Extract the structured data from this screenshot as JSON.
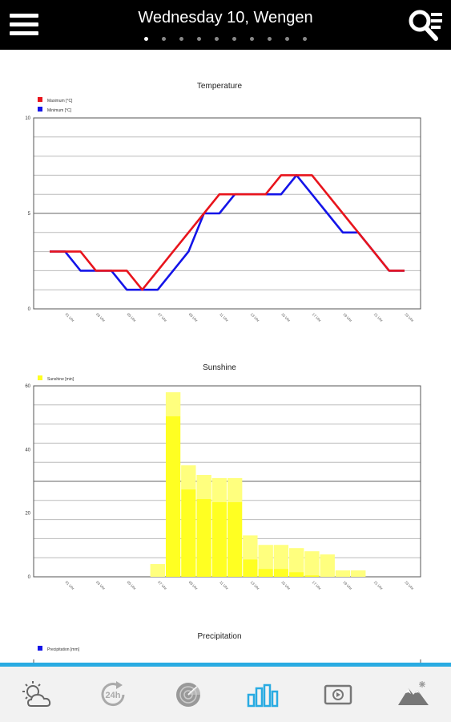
{
  "header": {
    "title": "Wednesday 10, Wengen",
    "page_count": 10,
    "active_page": 0
  },
  "charts": {
    "temperature": {
      "title": "Temperature",
      "legend": [
        {
          "label": "Maximum [°C]",
          "color": "#e8141c"
        },
        {
          "label": "Minimum [°C]",
          "color": "#1414e8"
        }
      ]
    },
    "sunshine": {
      "title": "Sunshine",
      "legend": [
        {
          "label": "Sunshine [min]",
          "color": "#ffff22"
        }
      ]
    },
    "precipitation": {
      "title": "Precipitation",
      "legend": [
        {
          "label": "Precipitation [mm]",
          "color": "#1414e8"
        }
      ]
    }
  },
  "chart_data": [
    {
      "type": "line",
      "title": "Temperature",
      "x": [
        "00:00",
        "01:00",
        "02:00",
        "03:00",
        "04:00",
        "05:00",
        "06:00",
        "07:00",
        "08:00",
        "09:00",
        "10:00",
        "11:00",
        "12:00",
        "13:00",
        "14:00",
        "15:00",
        "16:00",
        "17:00",
        "18:00",
        "19:00",
        "20:00",
        "21:00",
        "22:00",
        "23:00"
      ],
      "x_tick_labels": [
        "01 Uhr",
        "03 Uhr",
        "05 Uhr",
        "07 Uhr",
        "09 Uhr",
        "11 Uhr",
        "13 Uhr",
        "15 Uhr",
        "17 Uhr",
        "19 Uhr",
        "21 Uhr",
        "23 Uhr"
      ],
      "series": [
        {
          "name": "Maximum [°C]",
          "color": "#e8141c",
          "values": [
            3,
            3,
            3,
            2,
            2,
            2,
            1,
            2,
            3,
            4,
            5,
            6,
            6,
            6,
            6,
            7,
            7,
            7,
            6,
            5,
            4,
            3,
            2,
            2
          ]
        },
        {
          "name": "Minimum [°C]",
          "color": "#1414e8",
          "values": [
            3,
            3,
            2,
            2,
            2,
            1,
            1,
            1,
            2,
            3,
            5,
            5,
            6,
            6,
            6,
            6,
            7,
            6,
            5,
            4,
            4,
            3,
            2,
            2
          ]
        }
      ],
      "ylim": [
        0,
        10
      ],
      "y_ticks": [
        0,
        5,
        10
      ],
      "grid": true,
      "legend_position": "top-left"
    },
    {
      "type": "bar",
      "title": "Sunshine",
      "x": [
        "00:00",
        "01:00",
        "02:00",
        "03:00",
        "04:00",
        "05:00",
        "06:00",
        "07:00",
        "08:00",
        "09:00",
        "10:00",
        "11:00",
        "12:00",
        "13:00",
        "14:00",
        "15:00",
        "16:00",
        "17:00",
        "18:00",
        "19:00",
        "20:00",
        "21:00",
        "22:00",
        "23:00"
      ],
      "x_tick_labels": [
        "01 Uhr",
        "03 Uhr",
        "05 Uhr",
        "07 Uhr",
        "09 Uhr",
        "11 Uhr",
        "13 Uhr",
        "15 Uhr",
        "17 Uhr",
        "19 Uhr",
        "21 Uhr",
        "23 Uhr"
      ],
      "series": [
        {
          "name": "Sunshine [min]",
          "color": "#ffff22",
          "values": [
            0,
            0,
            0,
            0,
            0,
            0,
            0,
            4,
            58,
            35,
            32,
            31,
            31,
            13,
            10,
            10,
            9,
            8,
            7,
            2,
            2,
            0,
            0,
            0
          ]
        }
      ],
      "ylim": [
        0,
        60
      ],
      "y_ticks": [
        0,
        20,
        40,
        60
      ],
      "grid": true,
      "legend_position": "top-left"
    }
  ],
  "bottom_nav": [
    {
      "id": "forecast",
      "icon": "sun-cloud-icon"
    },
    {
      "id": "24h",
      "icon": "24h-icon",
      "label": "24h"
    },
    {
      "id": "radar",
      "icon": "radar-icon"
    },
    {
      "id": "charts",
      "icon": "bar-chart-icon",
      "active": true
    },
    {
      "id": "video",
      "icon": "video-icon"
    },
    {
      "id": "mountains",
      "icon": "mountain-icon"
    }
  ]
}
